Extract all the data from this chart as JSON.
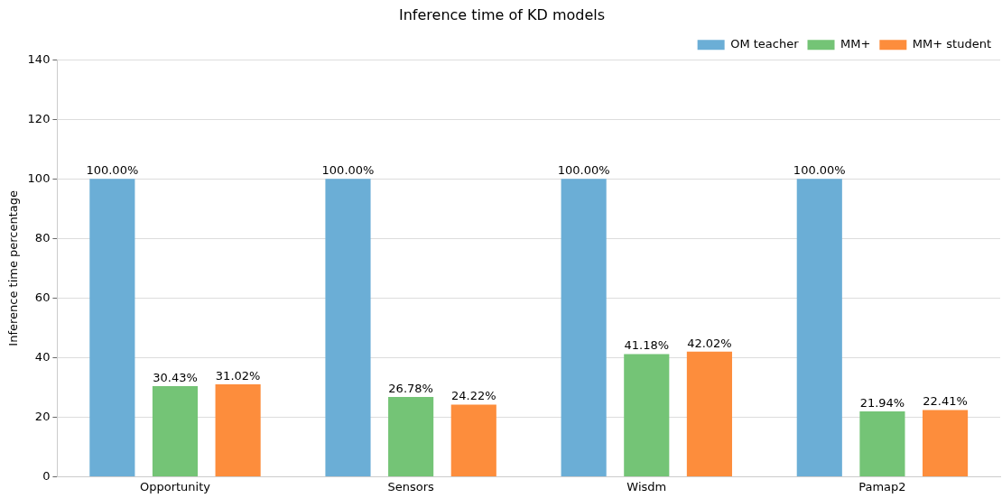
{
  "chart_data": {
    "type": "bar",
    "title": "Inference time of KD models",
    "ylabel": "Inference time percentage",
    "categories": [
      "Opportunity",
      "Sensors",
      "Wisdm",
      "Pamap2"
    ],
    "series": [
      {
        "name": "OM teacher",
        "color": "#6baed6",
        "values": [
          100,
          100,
          100,
          100
        ],
        "value_labels": [
          "100.00%",
          "100.00%",
          "100.00%",
          "100.00%"
        ]
      },
      {
        "name": "MM+",
        "color": "#74c476",
        "values": [
          30.43,
          26.78,
          41.18,
          21.94
        ],
        "value_labels": [
          "30.43%",
          "26.78%",
          "41.18%",
          "21.94%"
        ]
      },
      {
        "name": "MM+ student",
        "color": "#fd8d3c",
        "values": [
          31.02,
          24.22,
          42.02,
          22.41
        ],
        "value_labels": [
          "31.02%",
          "24.22%",
          "42.02%",
          "22.41%"
        ]
      }
    ],
    "ylim": [
      0,
      140
    ],
    "yticks": [
      0,
      20,
      40,
      60,
      80,
      100,
      120,
      140
    ],
    "grid": "y",
    "legend": "top right"
  }
}
